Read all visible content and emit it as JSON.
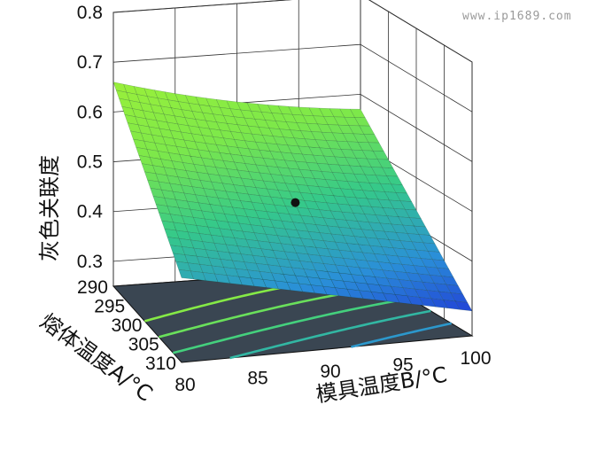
{
  "watermark": "www.ip1689.com",
  "chart_data": {
    "type": "surface3d",
    "title": "",
    "zlabel": "灰色关联度",
    "xlabel": "模具温度B/°C",
    "ylabel": "熔体温度A/°C",
    "x_ticks": [
      "80",
      "85",
      "90",
      "95",
      "100"
    ],
    "y_ticks": [
      "290",
      "295",
      "300",
      "305",
      "310"
    ],
    "z_ticks": [
      "0.3",
      "0.4",
      "0.5",
      "0.6",
      "0.7",
      "0.8"
    ],
    "xlim": [
      80,
      100
    ],
    "ylim": [
      290,
      310
    ],
    "zlim": [
      0.25,
      0.8
    ],
    "surface_corners": [
      {
        "mold_temp": 80,
        "melt_temp": 290,
        "grey_relation": 0.66
      },
      {
        "mold_temp": 100,
        "melt_temp": 290,
        "grey_relation": 0.57
      },
      {
        "mold_temp": 80,
        "melt_temp": 310,
        "grey_relation": 0.42
      },
      {
        "mold_temp": 100,
        "melt_temp": 310,
        "grey_relation": 0.3
      }
    ],
    "optimum_point": {
      "mold_temp": 91,
      "melt_temp": 300,
      "grey_relation": 0.47
    },
    "colormap": [
      "#1f2fd6",
      "#2a8fd8",
      "#35c98a",
      "#7de84a",
      "#9af03a"
    ],
    "floor_color": "#3a4652",
    "grid": true
  }
}
